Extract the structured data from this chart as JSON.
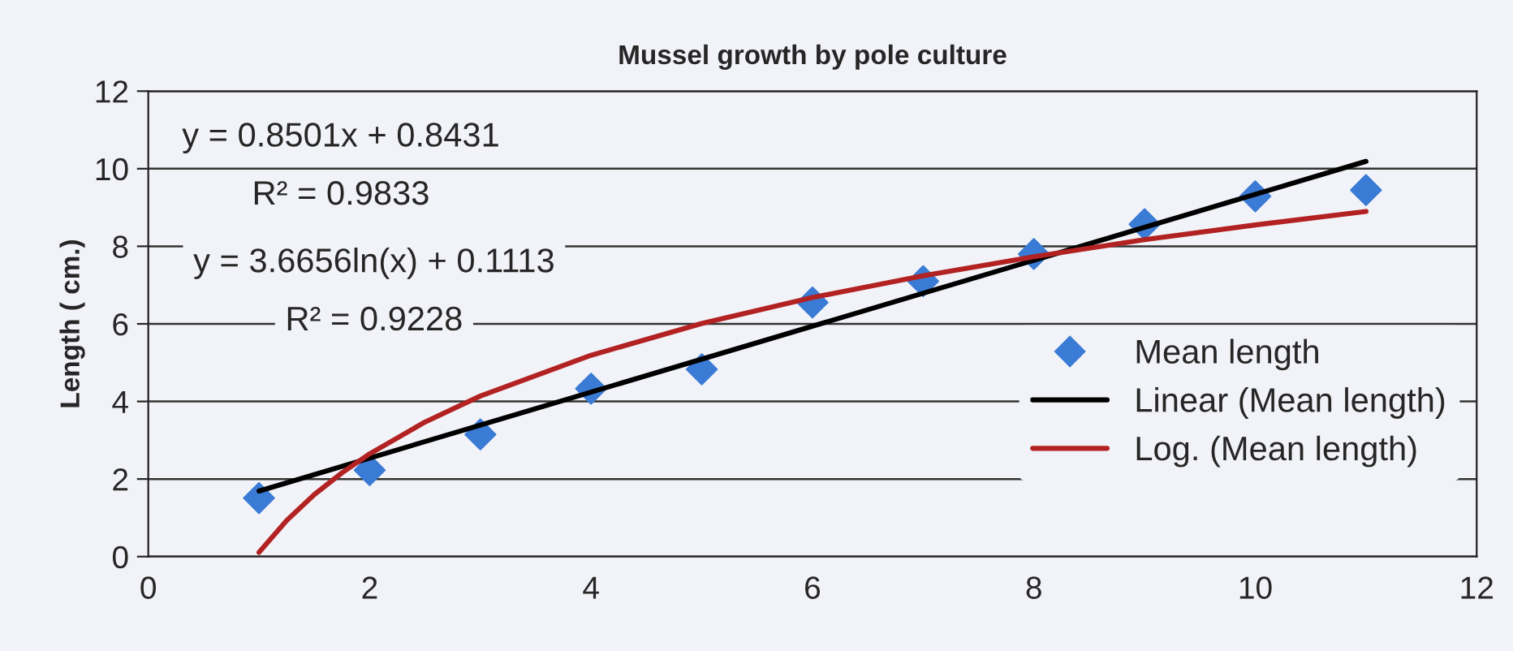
{
  "chart_data": {
    "type": "scatter",
    "title": "Mussel growth by pole culture",
    "ylabel": "Length ( cm.)",
    "x": [
      1,
      2,
      3,
      4,
      5,
      6,
      7,
      8,
      9,
      10,
      11
    ],
    "series": [
      {
        "name": "Mean length",
        "color": "#3a7bd5",
        "marker": "diamond",
        "values": [
          1.51,
          2.23,
          3.15,
          4.33,
          4.83,
          6.55,
          7.1,
          7.8,
          8.57,
          9.29,
          9.45
        ]
      },
      {
        "name": "Linear (Mean length)",
        "type": "line",
        "color": "#000000",
        "marker": "none",
        "x": [
          1,
          11
        ],
        "values": [
          1.69,
          10.19
        ]
      },
      {
        "name": "Log. (Mean length)",
        "type": "line",
        "color": "#b22222",
        "marker": "none",
        "x": [
          1,
          1.25,
          1.5,
          1.75,
          2,
          2.5,
          3,
          4,
          5,
          6,
          7,
          8,
          9,
          10,
          11
        ],
        "values": [
          0.11,
          0.93,
          1.6,
          2.16,
          2.65,
          3.47,
          4.14,
          5.19,
          6.01,
          6.68,
          7.24,
          7.73,
          8.17,
          8.55,
          8.9
        ]
      }
    ],
    "annotations": [
      "y = 0.8501x + 0.8431",
      "R² = 0.9833",
      "y = 3.6656ln(x) + 0.1113",
      "R² = 0.9228"
    ],
    "xlim": [
      0,
      12
    ],
    "xticks": [
      0,
      2,
      4,
      6,
      8,
      10,
      12
    ],
    "ylim": [
      0,
      12
    ],
    "yticks": [
      0,
      2,
      4,
      6,
      8,
      10,
      12
    ],
    "grid": "y",
    "legend": "right"
  }
}
